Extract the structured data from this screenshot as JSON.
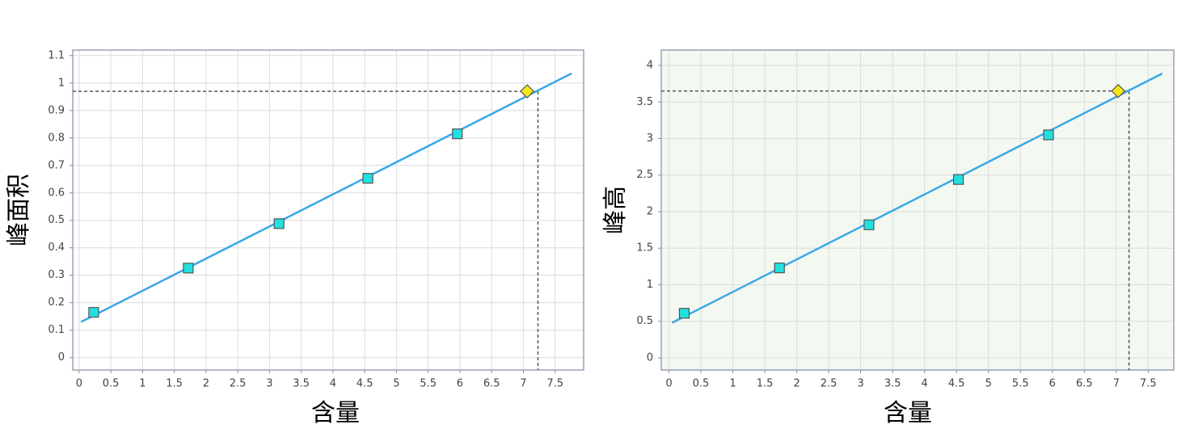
{
  "chart_data": [
    {
      "type": "scatter",
      "x_label": "含量",
      "y_label": "峰面积",
      "xlim": [
        -0.1,
        7.95
      ],
      "ylim": [
        -0.045,
        1.12
      ],
      "xticks": [
        0,
        0.5,
        1,
        1.5,
        2,
        2.5,
        3,
        3.5,
        4,
        4.5,
        5,
        5.5,
        6,
        6.5,
        7,
        7.5
      ],
      "yticks": [
        0,
        0.1,
        0.2,
        0.3,
        0.4,
        0.5,
        0.6,
        0.7,
        0.8,
        0.9,
        1,
        1.1
      ],
      "grid": true,
      "background": "#ffffff",
      "series": [
        {
          "type": "line",
          "color": "#3aa8e8",
          "x": [
            0.03,
            7.76
          ],
          "values": [
            0.13,
            1.035
          ]
        },
        {
          "marker": "square",
          "color": "#22e0e0",
          "x": [
            0.23,
            1.72,
            3.15,
            4.55,
            5.96
          ],
          "values": [
            0.165,
            0.326,
            0.488,
            0.653,
            0.815
          ]
        },
        {
          "marker": "diamond",
          "color": "#f5e617",
          "x": [
            7.06
          ],
          "values": [
            0.97
          ]
        }
      ],
      "guide": {
        "x": 7.23,
        "y": 0.97,
        "color": "#555555"
      }
    },
    {
      "type": "scatter",
      "x_label": "含量",
      "y_label": "峰高",
      "xlim": [
        -0.12,
        7.9
      ],
      "ylim": [
        -0.166,
        4.21
      ],
      "xticks": [
        0,
        0.5,
        1,
        1.5,
        2,
        2.5,
        3,
        3.5,
        4,
        4.5,
        5,
        5.5,
        6,
        6.5,
        7,
        7.5
      ],
      "yticks": [
        0,
        0.5,
        1,
        1.5,
        2,
        2.5,
        3,
        3.5,
        4
      ],
      "grid": true,
      "background": "#f3f8f1",
      "series": [
        {
          "type": "line",
          "color": "#3aa8e8",
          "x": [
            0.05,
            7.72
          ],
          "values": [
            0.48,
            3.89
          ]
        },
        {
          "marker": "square",
          "color": "#22e0e0",
          "x": [
            0.24,
            1.73,
            3.13,
            4.53,
            5.94
          ],
          "values": [
            0.61,
            1.23,
            1.82,
            2.44,
            3.05
          ]
        },
        {
          "marker": "diamond",
          "color": "#f5e617",
          "x": [
            7.03
          ],
          "values": [
            3.65
          ]
        }
      ],
      "guide": {
        "x": 7.2,
        "y": 3.65,
        "color": "#555555"
      }
    }
  ]
}
